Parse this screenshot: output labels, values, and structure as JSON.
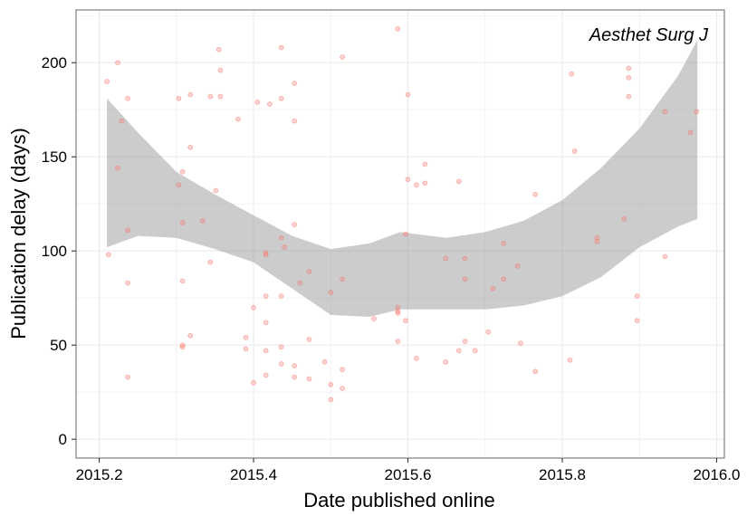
{
  "chart_data": {
    "type": "scatter",
    "title": "",
    "annotation": "Aesthet Surg J",
    "xlabel": "Date published online",
    "ylabel": "Publication delay (days)",
    "xlim": [
      2015.17,
      2016.01
    ],
    "ylim": [
      -10,
      228
    ],
    "x_ticks": [
      2015.2,
      2015.4,
      2015.6,
      2015.8,
      2016.0
    ],
    "x_tick_labels": [
      "2015.2",
      "2015.4",
      "2015.6",
      "2015.8",
      "2016.0"
    ],
    "y_ticks": [
      0,
      50,
      100,
      150,
      200
    ],
    "y_tick_labels": [
      "0",
      "50",
      "100",
      "150",
      "200"
    ],
    "grid": true,
    "legend": "none",
    "colors": {
      "points": "#f8766d",
      "ribbon": "#999999",
      "panel_border": "#7f7f7f",
      "grid": "#ebebeb"
    },
    "points": [
      {
        "x": 2015.21,
        "y": 190
      },
      {
        "x": 2015.212,
        "y": 98
      },
      {
        "x": 2015.224,
        "y": 200
      },
      {
        "x": 2015.224,
        "y": 144
      },
      {
        "x": 2015.229,
        "y": 169
      },
      {
        "x": 2015.237,
        "y": 181
      },
      {
        "x": 2015.237,
        "y": 111
      },
      {
        "x": 2015.237,
        "y": 83
      },
      {
        "x": 2015.237,
        "y": 33
      },
      {
        "x": 2015.303,
        "y": 181
      },
      {
        "x": 2015.303,
        "y": 135
      },
      {
        "x": 2015.308,
        "y": 142
      },
      {
        "x": 2015.308,
        "y": 115
      },
      {
        "x": 2015.308,
        "y": 84
      },
      {
        "x": 2015.308,
        "y": 50
      },
      {
        "x": 2015.308,
        "y": 49
      },
      {
        "x": 2015.318,
        "y": 183
      },
      {
        "x": 2015.318,
        "y": 155
      },
      {
        "x": 2015.318,
        "y": 55
      },
      {
        "x": 2015.334,
        "y": 116
      },
      {
        "x": 2015.344,
        "y": 182
      },
      {
        "x": 2015.344,
        "y": 94
      },
      {
        "x": 2015.351,
        "y": 132
      },
      {
        "x": 2015.355,
        "y": 207
      },
      {
        "x": 2015.357,
        "y": 196
      },
      {
        "x": 2015.357,
        "y": 182
      },
      {
        "x": 2015.38,
        "y": 170
      },
      {
        "x": 2015.39,
        "y": 54
      },
      {
        "x": 2015.39,
        "y": 48
      },
      {
        "x": 2015.4,
        "y": 70
      },
      {
        "x": 2015.4,
        "y": 30
      },
      {
        "x": 2015.405,
        "y": 179
      },
      {
        "x": 2015.416,
        "y": 99
      },
      {
        "x": 2015.416,
        "y": 98
      },
      {
        "x": 2015.416,
        "y": 76
      },
      {
        "x": 2015.416,
        "y": 62
      },
      {
        "x": 2015.416,
        "y": 47
      },
      {
        "x": 2015.416,
        "y": 34
      },
      {
        "x": 2015.421,
        "y": 178
      },
      {
        "x": 2015.436,
        "y": 208
      },
      {
        "x": 2015.436,
        "y": 181
      },
      {
        "x": 2015.436,
        "y": 107
      },
      {
        "x": 2015.436,
        "y": 76
      },
      {
        "x": 2015.436,
        "y": 49
      },
      {
        "x": 2015.436,
        "y": 40
      },
      {
        "x": 2015.44,
        "y": 102
      },
      {
        "x": 2015.453,
        "y": 189
      },
      {
        "x": 2015.453,
        "y": 169
      },
      {
        "x": 2015.453,
        "y": 114
      },
      {
        "x": 2015.453,
        "y": 39
      },
      {
        "x": 2015.453,
        "y": 33
      },
      {
        "x": 2015.46,
        "y": 83
      },
      {
        "x": 2015.472,
        "y": 89
      },
      {
        "x": 2015.472,
        "y": 53
      },
      {
        "x": 2015.472,
        "y": 32
      },
      {
        "x": 2015.492,
        "y": 41
      },
      {
        "x": 2015.5,
        "y": 78
      },
      {
        "x": 2015.5,
        "y": 29
      },
      {
        "x": 2015.5,
        "y": 21
      },
      {
        "x": 2015.515,
        "y": 203
      },
      {
        "x": 2015.515,
        "y": 85
      },
      {
        "x": 2015.515,
        "y": 37
      },
      {
        "x": 2015.515,
        "y": 27
      },
      {
        "x": 2015.556,
        "y": 64
      },
      {
        "x": 2015.587,
        "y": 218
      },
      {
        "x": 2015.587,
        "y": 70
      },
      {
        "x": 2015.587,
        "y": 68
      },
      {
        "x": 2015.587,
        "y": 67
      },
      {
        "x": 2015.587,
        "y": 52
      },
      {
        "x": 2015.597,
        "y": 109
      },
      {
        "x": 2015.597,
        "y": 63
      },
      {
        "x": 2015.6,
        "y": 183
      },
      {
        "x": 2015.6,
        "y": 138
      },
      {
        "x": 2015.611,
        "y": 135
      },
      {
        "x": 2015.611,
        "y": 43
      },
      {
        "x": 2015.622,
        "y": 146
      },
      {
        "x": 2015.622,
        "y": 136
      },
      {
        "x": 2015.649,
        "y": 96
      },
      {
        "x": 2015.649,
        "y": 41
      },
      {
        "x": 2015.666,
        "y": 137
      },
      {
        "x": 2015.666,
        "y": 47
      },
      {
        "x": 2015.674,
        "y": 96
      },
      {
        "x": 2015.674,
        "y": 85
      },
      {
        "x": 2015.674,
        "y": 52
      },
      {
        "x": 2015.687,
        "y": 47
      },
      {
        "x": 2015.704,
        "y": 57
      },
      {
        "x": 2015.71,
        "y": 80
      },
      {
        "x": 2015.724,
        "y": 104
      },
      {
        "x": 2015.724,
        "y": 85
      },
      {
        "x": 2015.742,
        "y": 92
      },
      {
        "x": 2015.746,
        "y": 51
      },
      {
        "x": 2015.765,
        "y": 130
      },
      {
        "x": 2015.765,
        "y": 36
      },
      {
        "x": 2015.81,
        "y": 42
      },
      {
        "x": 2015.812,
        "y": 194
      },
      {
        "x": 2015.816,
        "y": 153
      },
      {
        "x": 2015.845,
        "y": 107
      },
      {
        "x": 2015.845,
        "y": 105
      },
      {
        "x": 2015.88,
        "y": 117
      },
      {
        "x": 2015.886,
        "y": 197
      },
      {
        "x": 2015.886,
        "y": 192
      },
      {
        "x": 2015.886,
        "y": 182
      },
      {
        "x": 2015.897,
        "y": 76
      },
      {
        "x": 2015.897,
        "y": 63
      },
      {
        "x": 2015.933,
        "y": 174
      },
      {
        "x": 2015.933,
        "y": 97
      },
      {
        "x": 2015.966,
        "y": 163
      },
      {
        "x": 2015.974,
        "y": 174
      }
    ],
    "confidence_band": {
      "x": [
        2015.21,
        2015.25,
        2015.3,
        2015.35,
        2015.4,
        2015.45,
        2015.5,
        2015.55,
        2015.59,
        2015.65,
        2015.7,
        2015.75,
        2015.8,
        2015.85,
        2015.9,
        2015.95,
        2015.975
      ],
      "lower": [
        102,
        108,
        107,
        101,
        94,
        80,
        66,
        65,
        69,
        69,
        69,
        71,
        76,
        86,
        102,
        113,
        117
      ],
      "upper": [
        181,
        163,
        142,
        130,
        119,
        108,
        101,
        104,
        110,
        107,
        110,
        116,
        127,
        144,
        165,
        193,
        212
      ]
    }
  }
}
